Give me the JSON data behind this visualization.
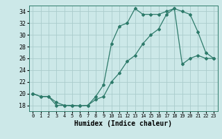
{
  "xlabel": "Humidex (Indice chaleur)",
  "ylabel": "",
  "background_color": "#cce8e8",
  "grid_color": "#aacccc",
  "line_color": "#2d7a6a",
  "xlim": [
    -0.5,
    23.5
  ],
  "ylim": [
    17.0,
    35.0
  ],
  "yticks": [
    18,
    20,
    22,
    24,
    26,
    28,
    30,
    32,
    34
  ],
  "xticks": [
    0,
    1,
    2,
    3,
    4,
    5,
    6,
    7,
    8,
    9,
    10,
    11,
    12,
    13,
    14,
    15,
    16,
    17,
    18,
    19,
    20,
    21,
    22,
    23
  ],
  "xtick_labels": [
    "0",
    "1",
    "2",
    "3",
    "4",
    "5",
    "6",
    "7",
    "8",
    "9",
    "10",
    "11",
    "12",
    "13",
    "14",
    "15",
    "16",
    "17",
    "18",
    "19",
    "20",
    "21",
    "22",
    "23"
  ],
  "line1_x": [
    0,
    1,
    2,
    3,
    4,
    5,
    6,
    7,
    8,
    9,
    10,
    11,
    12,
    13,
    14,
    15,
    16,
    17,
    18,
    19,
    20,
    21,
    22,
    23
  ],
  "line1_y": [
    20.0,
    19.5,
    19.5,
    18.0,
    18.0,
    17.9,
    17.9,
    18.0,
    19.5,
    21.5,
    28.5,
    31.5,
    32.0,
    34.5,
    33.5,
    33.5,
    33.5,
    34.0,
    34.5,
    34.0,
    33.5,
    30.5,
    27.0,
    26.0
  ],
  "line2_x": [
    0,
    1,
    2,
    3,
    4,
    5,
    6,
    7,
    8,
    9,
    10,
    11,
    12,
    13,
    14,
    15,
    16,
    17,
    18,
    19,
    20,
    21,
    22,
    23
  ],
  "line2_y": [
    20.0,
    19.5,
    19.5,
    18.5,
    18.0,
    18.0,
    17.9,
    18.0,
    19.0,
    19.5,
    22.0,
    23.5,
    25.5,
    26.5,
    28.5,
    30.0,
    31.0,
    33.5,
    34.5,
    25.0,
    26.0,
    26.5,
    26.0,
    26.0
  ],
  "xlabel_fontsize": 7,
  "tick_fontsize": 5,
  "ytick_fontsize": 6
}
